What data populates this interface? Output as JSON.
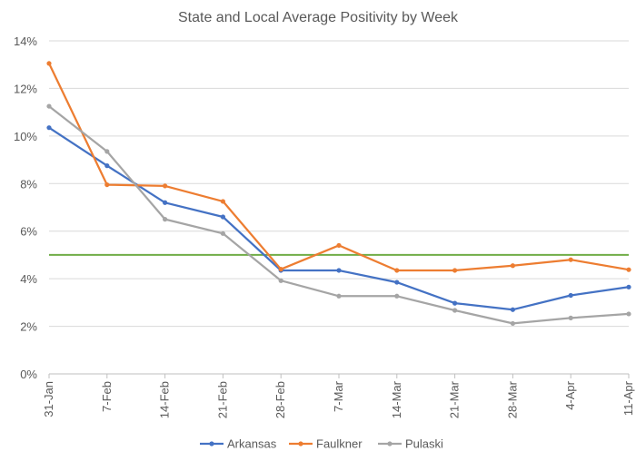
{
  "chart_data": {
    "type": "line",
    "title": "State and Local Average Positivity by Week",
    "xlabel": "",
    "ylabel": "",
    "categories": [
      "31-Jan",
      "7-Feb",
      "14-Feb",
      "21-Feb",
      "28-Feb",
      "7-Mar",
      "14-Mar",
      "21-Mar",
      "28-Mar",
      "4-Apr",
      "11-Apr"
    ],
    "ylim": [
      0,
      14
    ],
    "yticks": [
      0,
      2,
      4,
      6,
      8,
      10,
      12,
      14
    ],
    "ytick_labels": [
      "0%",
      "2%",
      "4%",
      "6%",
      "8%",
      "10%",
      "12%",
      "14%"
    ],
    "grid": true,
    "legend_position": "bottom",
    "series": [
      {
        "name": "Arkansas",
        "color": "#4472c4",
        "values": [
          10.35,
          8.75,
          7.2,
          6.6,
          4.35,
          4.35,
          3.85,
          2.97,
          2.7,
          3.3,
          3.65
        ]
      },
      {
        "name": "Faulkner",
        "color": "#ed7d31",
        "values": [
          13.05,
          7.95,
          7.9,
          7.25,
          4.4,
          5.4,
          4.35,
          4.35,
          4.55,
          4.8,
          4.38
        ]
      },
      {
        "name": "Pulaski",
        "color": "#a5a5a5",
        "values": [
          11.25,
          9.35,
          6.5,
          5.9,
          3.92,
          3.27,
          3.27,
          2.67,
          2.12,
          2.35,
          2.52
        ]
      }
    ],
    "reference_line": {
      "value": 5,
      "color": "#70ad47"
    }
  }
}
